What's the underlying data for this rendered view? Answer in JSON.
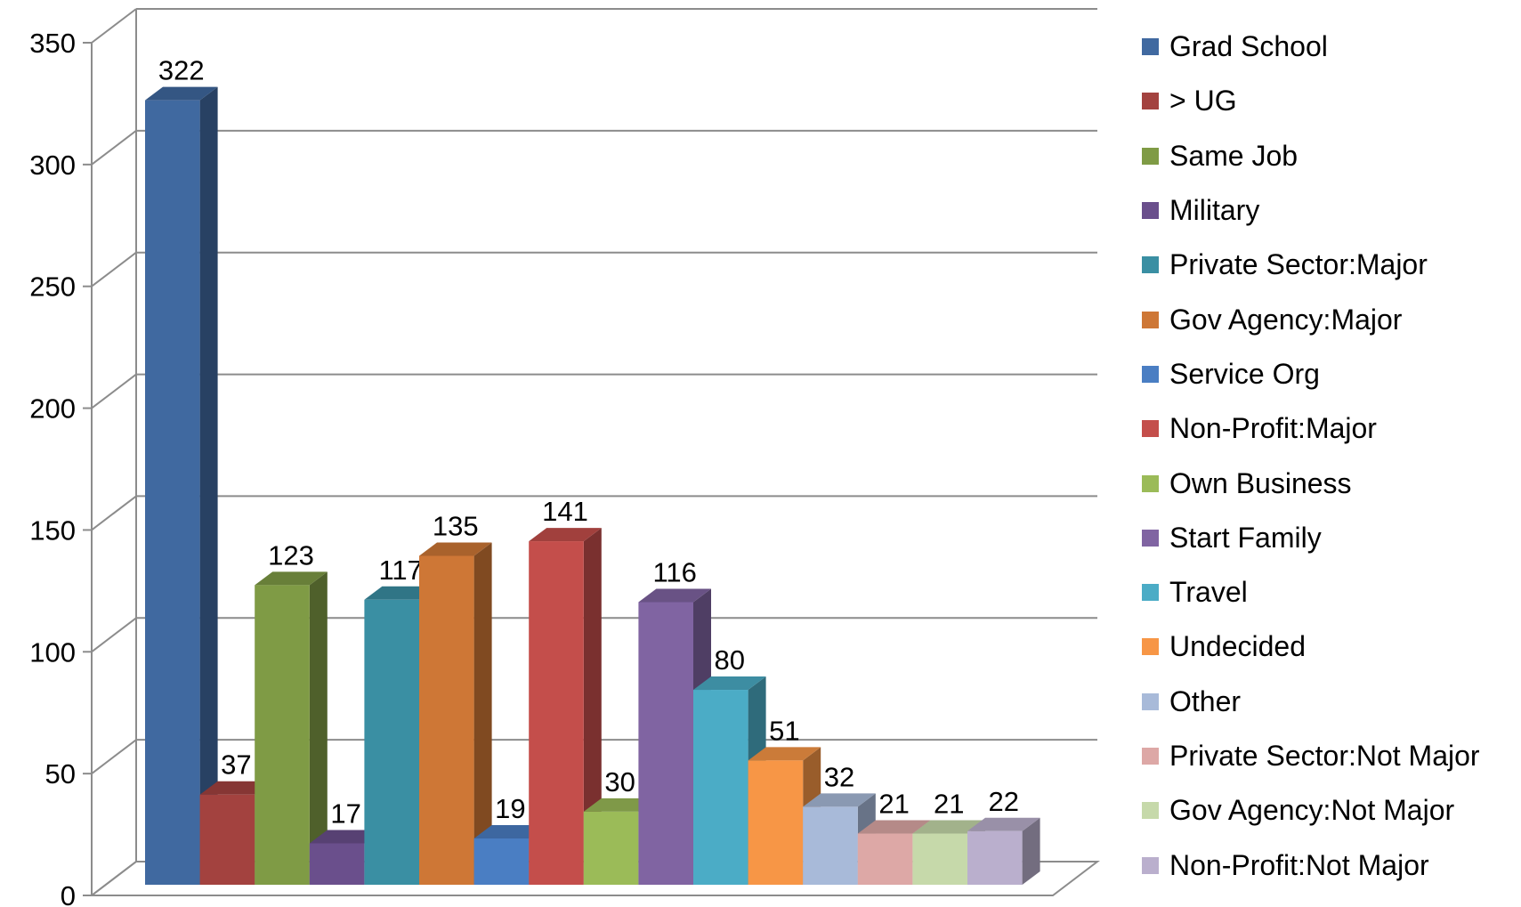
{
  "chart_data": {
    "type": "bar",
    "title": "",
    "xlabel": "",
    "ylabel": "",
    "ylim": [
      0,
      350
    ],
    "y_ticks": [
      "0",
      "50",
      "100",
      "150",
      "200",
      "250",
      "300",
      "350"
    ],
    "grid": true,
    "legend_position": "right",
    "style": "3d-clustered-column",
    "categories": [
      "Grad School",
      "> UG",
      "Same Job",
      "Military",
      "Private Sector:Major",
      "Gov Agency:Major",
      "Service Org",
      "Non-Profit:Major",
      "Own Business",
      "Start Family",
      "Travel",
      "Undecided",
      "Other",
      "Private Sector:Not Major",
      "Gov Agency:Not Major",
      "Non-Profit:Not Major"
    ],
    "values": [
      322,
      37,
      123,
      17,
      117,
      135,
      19,
      141,
      30,
      116,
      80,
      51,
      32,
      21,
      21,
      22
    ],
    "data_labels": [
      "322",
      "37",
      "123",
      "17",
      "117",
      "135",
      "19",
      "141",
      "30",
      "116",
      "80",
      "51",
      "32",
      "21",
      "21",
      "22"
    ],
    "colors": [
      "#4069A0",
      "#A3423F",
      "#7F9B45",
      "#6A4F8C",
      "#3A8FA3",
      "#CE7736",
      "#4A7EC3",
      "#C44E4B",
      "#9BBB58",
      "#8064A2",
      "#4BACC6",
      "#F79646",
      "#A8BAD9",
      "#DDA8A6",
      "#C6D9AA",
      "#BAAFCD"
    ]
  }
}
